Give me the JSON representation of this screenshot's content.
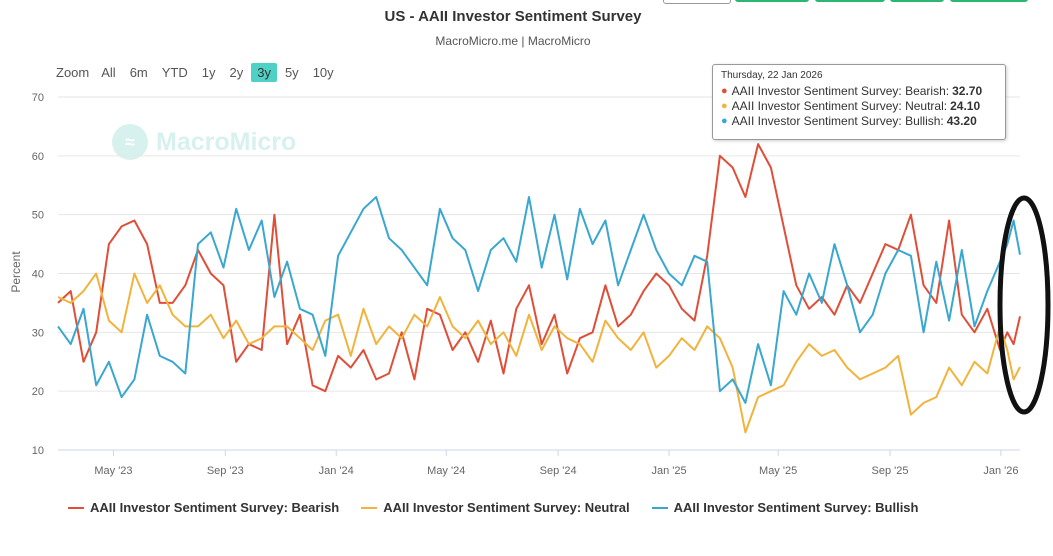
{
  "header": {
    "title": "US - AAII Investor Sentiment Survey",
    "subtitle": "MacroMicro.me | MacroMicro"
  },
  "zoom": {
    "label": "Zoom",
    "options": [
      "All",
      "6m",
      "YTD",
      "1y",
      "2y",
      "3y",
      "5y",
      "10y"
    ],
    "active": "3y"
  },
  "watermark": {
    "text": "MacroMicro"
  },
  "tooltip": {
    "date": "Thursday, 22 Jan 2026",
    "rows": [
      {
        "label": "AAII Investor Sentiment Survey: Bearish:",
        "value": "32.70",
        "color": "#e04e38"
      },
      {
        "label": "AAII Investor Sentiment Survey: Neutral:",
        "value": "24.10",
        "color": "#f2b33d"
      },
      {
        "label": "AAII Investor Sentiment Survey: Bullish:",
        "value": "43.20",
        "color": "#3aa7d0"
      }
    ]
  },
  "colors": {
    "bearish": "#e04e38",
    "neutral": "#f2b33d",
    "bullish": "#3aa7d0",
    "grid": "#e6e6e6",
    "annotation": "#111111"
  },
  "chart_data": {
    "type": "line",
    "title": "US - AAII Investor Sentiment Survey",
    "ylabel": "Percent",
    "xlabel": "",
    "ylim": [
      10,
      70
    ],
    "yticks": [
      10,
      20,
      30,
      40,
      50,
      60,
      70
    ],
    "xlim": [
      "2023-03-01",
      "2026-01-22"
    ],
    "xticks": [
      {
        "date": "2023-05-01",
        "label": "May '23"
      },
      {
        "date": "2023-09-01",
        "label": "Sep '23"
      },
      {
        "date": "2024-01-01",
        "label": "Jan '24"
      },
      {
        "date": "2024-05-01",
        "label": "May '24"
      },
      {
        "date": "2024-09-01",
        "label": "Sep '24"
      },
      {
        "date": "2025-01-01",
        "label": "Jan '25"
      },
      {
        "date": "2025-05-01",
        "label": "May '25"
      },
      {
        "date": "2025-09-01",
        "label": "Sep '25"
      },
      {
        "date": "2026-01-01",
        "label": "Jan '26"
      }
    ],
    "annotation": {
      "type": "ellipse",
      "color": "#111111",
      "note": "highlights latest readings (Jan 2026)"
    },
    "series": [
      {
        "name": "AAII Investor Sentiment Survey: Bearish",
        "color": "#e04e38",
        "points": [
          [
            "2023-03-01",
            35
          ],
          [
            "2023-03-15",
            37
          ],
          [
            "2023-03-29",
            25
          ],
          [
            "2023-04-12",
            30
          ],
          [
            "2023-04-26",
            45
          ],
          [
            "2023-05-10",
            48
          ],
          [
            "2023-05-24",
            49
          ],
          [
            "2023-06-07",
            45
          ],
          [
            "2023-06-21",
            35
          ],
          [
            "2023-07-05",
            35
          ],
          [
            "2023-07-19",
            38
          ],
          [
            "2023-08-02",
            44
          ],
          [
            "2023-08-16",
            40
          ],
          [
            "2023-08-30",
            38
          ],
          [
            "2023-09-13",
            25
          ],
          [
            "2023-09-27",
            28
          ],
          [
            "2023-10-11",
            27
          ],
          [
            "2023-10-25",
            50
          ],
          [
            "2023-11-08",
            28
          ],
          [
            "2023-11-22",
            33
          ],
          [
            "2023-12-06",
            21
          ],
          [
            "2023-12-20",
            20
          ],
          [
            "2024-01-03",
            26
          ],
          [
            "2024-01-17",
            24
          ],
          [
            "2024-01-31",
            27
          ],
          [
            "2024-02-14",
            22
          ],
          [
            "2024-02-28",
            23
          ],
          [
            "2024-03-13",
            30
          ],
          [
            "2024-03-27",
            22
          ],
          [
            "2024-04-10",
            34
          ],
          [
            "2024-04-24",
            33
          ],
          [
            "2024-05-08",
            27
          ],
          [
            "2024-05-22",
            30
          ],
          [
            "2024-06-05",
            25
          ],
          [
            "2024-06-19",
            32
          ],
          [
            "2024-07-03",
            23
          ],
          [
            "2024-07-17",
            34
          ],
          [
            "2024-07-31",
            38
          ],
          [
            "2024-08-14",
            28
          ],
          [
            "2024-08-28",
            33
          ],
          [
            "2024-09-11",
            23
          ],
          [
            "2024-09-25",
            29
          ],
          [
            "2024-10-09",
            30
          ],
          [
            "2024-10-23",
            38
          ],
          [
            "2024-11-06",
            31
          ],
          [
            "2024-11-20",
            33
          ],
          [
            "2024-12-04",
            37
          ],
          [
            "2024-12-18",
            40
          ],
          [
            "2025-01-01",
            38
          ],
          [
            "2025-01-15",
            34
          ],
          [
            "2025-01-29",
            32
          ],
          [
            "2025-02-12",
            43
          ],
          [
            "2025-02-26",
            60
          ],
          [
            "2025-03-12",
            58
          ],
          [
            "2025-03-26",
            53
          ],
          [
            "2025-04-09",
            62
          ],
          [
            "2025-04-23",
            58
          ],
          [
            "2025-05-07",
            48
          ],
          [
            "2025-05-21",
            38
          ],
          [
            "2025-06-04",
            34
          ],
          [
            "2025-06-18",
            36
          ],
          [
            "2025-07-02",
            33
          ],
          [
            "2025-07-16",
            38
          ],
          [
            "2025-07-30",
            35
          ],
          [
            "2025-08-13",
            40
          ],
          [
            "2025-08-27",
            45
          ],
          [
            "2025-09-10",
            44
          ],
          [
            "2025-09-24",
            50
          ],
          [
            "2025-10-08",
            38
          ],
          [
            "2025-10-22",
            35
          ],
          [
            "2025-11-05",
            49
          ],
          [
            "2025-11-19",
            33
          ],
          [
            "2025-12-03",
            30
          ],
          [
            "2025-12-17",
            34
          ],
          [
            "2025-12-31",
            27
          ],
          [
            "2026-01-08",
            30
          ],
          [
            "2026-01-15",
            28
          ],
          [
            "2026-01-22",
            32.7
          ]
        ]
      },
      {
        "name": "AAII Investor Sentiment Survey: Neutral",
        "color": "#f2b33d",
        "points": [
          [
            "2023-03-01",
            36
          ],
          [
            "2023-03-15",
            35
          ],
          [
            "2023-03-29",
            37
          ],
          [
            "2023-04-12",
            40
          ],
          [
            "2023-04-26",
            32
          ],
          [
            "2023-05-10",
            30
          ],
          [
            "2023-05-24",
            40
          ],
          [
            "2023-06-07",
            35
          ],
          [
            "2023-06-21",
            38
          ],
          [
            "2023-07-05",
            33
          ],
          [
            "2023-07-19",
            31
          ],
          [
            "2023-08-02",
            31
          ],
          [
            "2023-08-16",
            33
          ],
          [
            "2023-08-30",
            29
          ],
          [
            "2023-09-13",
            32
          ],
          [
            "2023-09-27",
            28
          ],
          [
            "2023-10-11",
            29
          ],
          [
            "2023-10-25",
            31
          ],
          [
            "2023-11-08",
            31
          ],
          [
            "2023-11-22",
            29
          ],
          [
            "2023-12-06",
            27
          ],
          [
            "2023-12-20",
            32
          ],
          [
            "2024-01-03",
            33
          ],
          [
            "2024-01-17",
            26
          ],
          [
            "2024-01-31",
            34
          ],
          [
            "2024-02-14",
            28
          ],
          [
            "2024-02-28",
            31
          ],
          [
            "2024-03-13",
            29
          ],
          [
            "2024-03-27",
            33
          ],
          [
            "2024-04-10",
            31
          ],
          [
            "2024-04-24",
            36
          ],
          [
            "2024-05-08",
            31
          ],
          [
            "2024-05-22",
            29
          ],
          [
            "2024-06-05",
            32
          ],
          [
            "2024-06-19",
            28
          ],
          [
            "2024-07-03",
            30
          ],
          [
            "2024-07-17",
            26
          ],
          [
            "2024-07-31",
            33
          ],
          [
            "2024-08-14",
            27
          ],
          [
            "2024-08-28",
            31
          ],
          [
            "2024-09-11",
            29
          ],
          [
            "2024-09-25",
            28
          ],
          [
            "2024-10-09",
            25
          ],
          [
            "2024-10-23",
            32
          ],
          [
            "2024-11-06",
            29
          ],
          [
            "2024-11-20",
            27
          ],
          [
            "2024-12-04",
            30
          ],
          [
            "2024-12-18",
            24
          ],
          [
            "2025-01-01",
            26
          ],
          [
            "2025-01-15",
            29
          ],
          [
            "2025-01-29",
            27
          ],
          [
            "2025-02-12",
            31
          ],
          [
            "2025-02-26",
            29
          ],
          [
            "2025-03-12",
            24
          ],
          [
            "2025-03-26",
            13
          ],
          [
            "2025-04-09",
            19
          ],
          [
            "2025-04-23",
            20
          ],
          [
            "2025-05-07",
            21
          ],
          [
            "2025-05-21",
            25
          ],
          [
            "2025-06-04",
            28
          ],
          [
            "2025-06-18",
            26
          ],
          [
            "2025-07-02",
            27
          ],
          [
            "2025-07-16",
            24
          ],
          [
            "2025-07-30",
            22
          ],
          [
            "2025-08-13",
            23
          ],
          [
            "2025-08-27",
            24
          ],
          [
            "2025-09-10",
            26
          ],
          [
            "2025-09-24",
            16
          ],
          [
            "2025-10-08",
            18
          ],
          [
            "2025-10-22",
            19
          ],
          [
            "2025-11-05",
            24
          ],
          [
            "2025-11-19",
            21
          ],
          [
            "2025-12-03",
            25
          ],
          [
            "2025-12-17",
            23
          ],
          [
            "2025-12-31",
            31
          ],
          [
            "2026-01-08",
            27
          ],
          [
            "2026-01-15",
            22
          ],
          [
            "2026-01-22",
            24.1
          ]
        ]
      },
      {
        "name": "AAII Investor Sentiment Survey: Bullish",
        "color": "#3aa7d0",
        "points": [
          [
            "2023-03-01",
            31
          ],
          [
            "2023-03-15",
            28
          ],
          [
            "2023-03-29",
            34
          ],
          [
            "2023-04-12",
            21
          ],
          [
            "2023-04-26",
            25
          ],
          [
            "2023-05-10",
            19
          ],
          [
            "2023-05-24",
            22
          ],
          [
            "2023-06-07",
            33
          ],
          [
            "2023-06-21",
            26
          ],
          [
            "2023-07-05",
            25
          ],
          [
            "2023-07-19",
            23
          ],
          [
            "2023-08-02",
            45
          ],
          [
            "2023-08-16",
            47
          ],
          [
            "2023-08-30",
            41
          ],
          [
            "2023-09-13",
            51
          ],
          [
            "2023-09-27",
            44
          ],
          [
            "2023-10-11",
            49
          ],
          [
            "2023-10-25",
            36
          ],
          [
            "2023-11-08",
            42
          ],
          [
            "2023-11-22",
            34
          ],
          [
            "2023-12-06",
            33
          ],
          [
            "2023-12-20",
            26
          ],
          [
            "2024-01-03",
            43
          ],
          [
            "2024-01-17",
            47
          ],
          [
            "2024-01-31",
            51
          ],
          [
            "2024-02-14",
            53
          ],
          [
            "2024-02-28",
            46
          ],
          [
            "2024-03-13",
            44
          ],
          [
            "2024-03-27",
            41
          ],
          [
            "2024-04-10",
            38
          ],
          [
            "2024-04-24",
            51
          ],
          [
            "2024-05-08",
            46
          ],
          [
            "2024-05-22",
            44
          ],
          [
            "2024-06-05",
            37
          ],
          [
            "2024-06-19",
            44
          ],
          [
            "2024-07-03",
            46
          ],
          [
            "2024-07-17",
            42
          ],
          [
            "2024-07-31",
            53
          ],
          [
            "2024-08-14",
            41
          ],
          [
            "2024-08-28",
            50
          ],
          [
            "2024-09-11",
            39
          ],
          [
            "2024-09-25",
            51
          ],
          [
            "2024-10-09",
            45
          ],
          [
            "2024-10-23",
            49
          ],
          [
            "2024-11-06",
            38
          ],
          [
            "2024-11-20",
            44
          ],
          [
            "2024-12-04",
            50
          ],
          [
            "2024-12-18",
            44
          ],
          [
            "2025-01-01",
            40
          ],
          [
            "2025-01-15",
            38
          ],
          [
            "2025-01-29",
            43
          ],
          [
            "2025-02-12",
            42
          ],
          [
            "2025-02-26",
            20
          ],
          [
            "2025-03-12",
            22
          ],
          [
            "2025-03-26",
            18
          ],
          [
            "2025-04-09",
            28
          ],
          [
            "2025-04-23",
            21
          ],
          [
            "2025-05-07",
            37
          ],
          [
            "2025-05-21",
            33
          ],
          [
            "2025-06-04",
            40
          ],
          [
            "2025-06-18",
            35
          ],
          [
            "2025-07-02",
            45
          ],
          [
            "2025-07-16",
            38
          ],
          [
            "2025-07-30",
            30
          ],
          [
            "2025-08-13",
            33
          ],
          [
            "2025-08-27",
            40
          ],
          [
            "2025-09-10",
            44
          ],
          [
            "2025-09-24",
            43
          ],
          [
            "2025-10-08",
            30
          ],
          [
            "2025-10-22",
            42
          ],
          [
            "2025-11-05",
            32
          ],
          [
            "2025-11-19",
            44
          ],
          [
            "2025-12-03",
            31
          ],
          [
            "2025-12-17",
            37
          ],
          [
            "2025-12-31",
            42
          ],
          [
            "2026-01-08",
            45
          ],
          [
            "2026-01-15",
            49
          ],
          [
            "2026-01-22",
            43.2
          ]
        ]
      }
    ]
  }
}
